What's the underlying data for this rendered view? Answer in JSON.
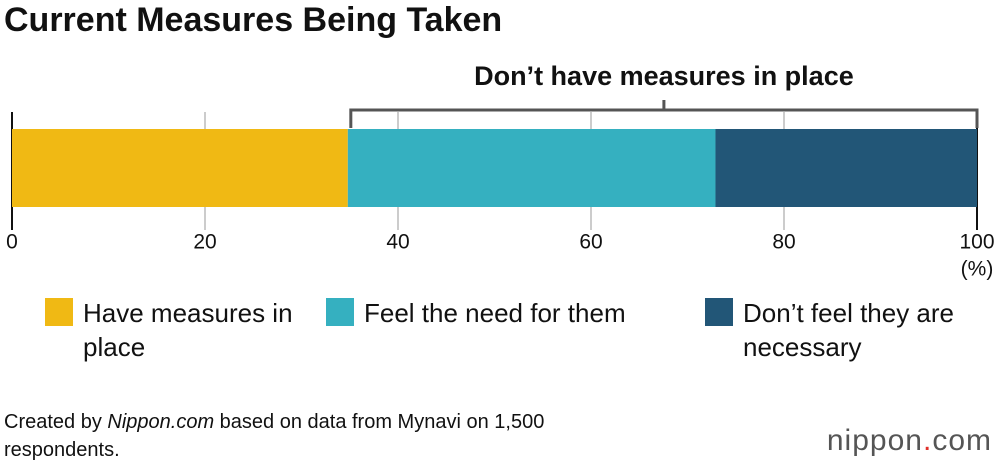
{
  "chart_data": {
    "type": "stacked-bar",
    "title": "Current Measures Being Taken",
    "annotation": "Don’t have measures in place",
    "x_unit": "(%)",
    "series": [
      {
        "name": "Have measures in place",
        "color": "#f0b914",
        "values": [
          34.8
        ]
      },
      {
        "name": "Feel the need for them",
        "color": "#35b0c0",
        "values": [
          38.1
        ]
      },
      {
        "name": "Don’t feel they are necessary",
        "color": "#225677",
        "values": [
          27.1
        ]
      }
    ],
    "xlim": [
      0,
      100
    ],
    "xticks": [
      0,
      20,
      40,
      60,
      80,
      100
    ],
    "grid": true,
    "source": [
      "Created by ",
      "Nippon.com",
      " based on data from Mynavi on 1,500 respondents."
    ],
    "logo": [
      "nippon",
      ".",
      "com"
    ]
  }
}
